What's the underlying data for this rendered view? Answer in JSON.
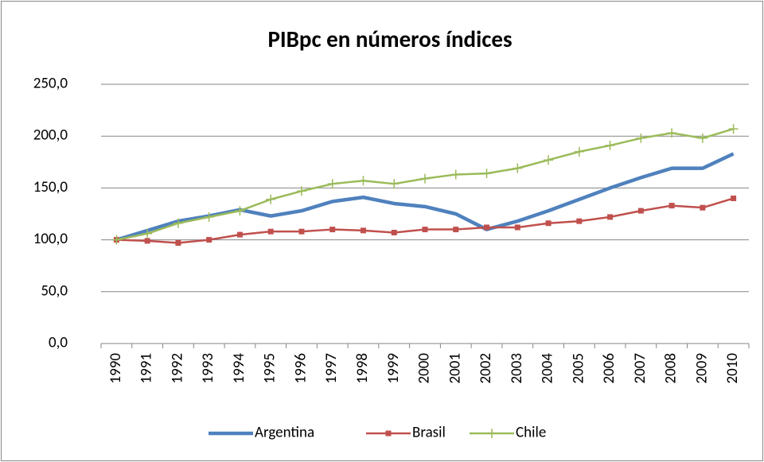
{
  "chart_data": {
    "type": "line",
    "title": "PIBpc en números índices",
    "categories": [
      "1990",
      "1991",
      "1992",
      "1993",
      "1994",
      "1995",
      "1996",
      "1997",
      "1998",
      "1999",
      "2000",
      "2001",
      "2002",
      "2003",
      "2004",
      "2005",
      "2006",
      "2007",
      "2008",
      "2009",
      "2010"
    ],
    "series": [
      {
        "name": "Argentina",
        "color": "#4f81bd",
        "marker": "none",
        "values": [
          100,
          109,
          118,
          123,
          129,
          123,
          128,
          137,
          141,
          135,
          132,
          125,
          110,
          118,
          128,
          139,
          150,
          160,
          169,
          169,
          183
        ]
      },
      {
        "name": "Brasil",
        "color": "#c0504d",
        "marker": "square",
        "values": [
          100,
          99,
          97,
          100,
          105,
          108,
          108,
          110,
          109,
          107,
          110,
          110,
          112,
          112,
          116,
          118,
          122,
          128,
          133,
          131,
          140
        ]
      },
      {
        "name": "Chile",
        "color": "#9bbb59",
        "marker": "plus",
        "values": [
          100,
          106,
          116,
          122,
          128,
          139,
          147,
          154,
          157,
          154,
          159,
          163,
          164,
          169,
          177,
          185,
          191,
          198,
          203,
          198,
          207
        ]
      }
    ],
    "ylim": [
      0,
      250
    ],
    "yticks": [
      {
        "value": 0,
        "label": "0,0"
      },
      {
        "value": 50,
        "label": "50,0"
      },
      {
        "value": 100,
        "label": "100,0"
      },
      {
        "value": 150,
        "label": "150,0"
      },
      {
        "value": 200,
        "label": "200,0"
      },
      {
        "value": 250,
        "label": "250,0"
      }
    ],
    "grid": true,
    "legend": "bottom"
  }
}
